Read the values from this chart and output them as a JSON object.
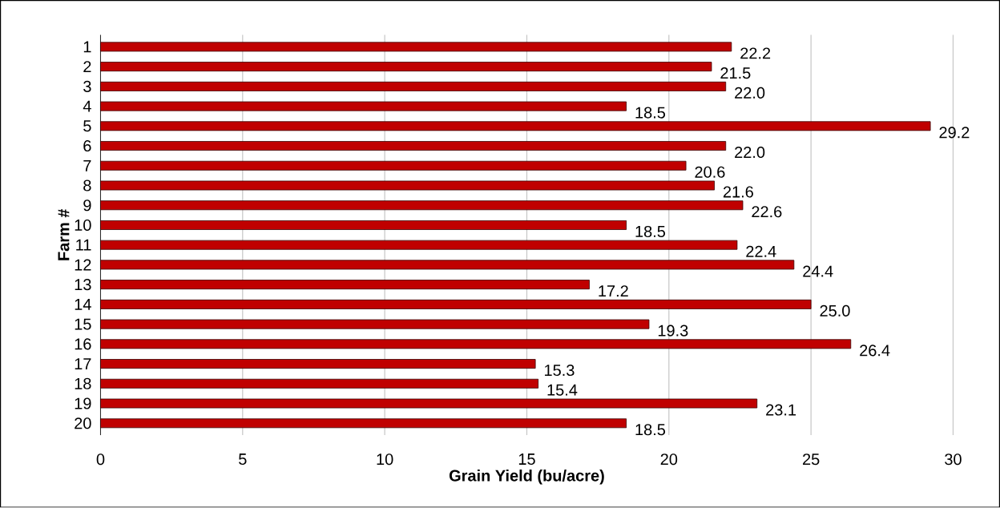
{
  "chart_data": {
    "type": "bar",
    "orientation": "horizontal",
    "xlabel": "Grain Yield (bu/acre)",
    "ylabel": "Farm #",
    "categories": [
      "1",
      "2",
      "3",
      "4",
      "5",
      "6",
      "7",
      "8",
      "9",
      "10",
      "11",
      "12",
      "13",
      "14",
      "15",
      "16",
      "17",
      "18",
      "19",
      "20"
    ],
    "values": [
      22.2,
      21.5,
      22.0,
      18.5,
      29.2,
      22.0,
      20.6,
      21.6,
      22.6,
      18.5,
      22.4,
      24.4,
      17.2,
      25.0,
      19.3,
      26.4,
      15.3,
      15.4,
      23.1,
      18.5
    ],
    "value_labels": [
      "22.2",
      "21.5",
      "22.0",
      "18.5",
      "29.2",
      "22.0",
      "20.6",
      "21.6",
      "22.6",
      "18.5",
      "22.4",
      "24.4",
      "17.2",
      "25.0",
      "19.3",
      "26.4",
      "15.3",
      "15.4",
      "23.1",
      "18.5"
    ],
    "color": "#c00000",
    "xlim": [
      0,
      30
    ],
    "xticks": [
      0,
      5,
      10,
      15,
      20,
      25,
      30
    ],
    "grid": "x"
  }
}
